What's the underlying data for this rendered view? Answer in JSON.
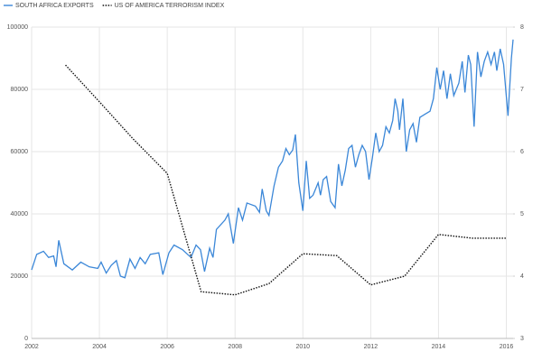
{
  "chart_data": {
    "type": "line",
    "xlim": [
      2002,
      2016.2
    ],
    "xticks": [
      2002,
      2004,
      2006,
      2008,
      2010,
      2012,
      2014,
      2016
    ],
    "ylim": [
      0,
      100000
    ],
    "yticks": [
      0,
      20000,
      40000,
      60000,
      80000,
      100000
    ],
    "y2lim": [
      3,
      8
    ],
    "y2ticks": [
      3,
      4,
      5,
      6,
      7,
      8
    ],
    "grid": true,
    "legend": "top-left",
    "series": [
      {
        "name": "SOUTH AFRICA EXPORTS",
        "color": "#3b87d8",
        "axis": "y",
        "style": "solid",
        "x": [
          2002.0,
          2002.15,
          2002.35,
          2002.5,
          2002.65,
          2002.72,
          2002.8,
          2002.95,
          2003.2,
          2003.45,
          2003.7,
          2003.95,
          2004.05,
          2004.2,
          2004.35,
          2004.5,
          2004.62,
          2004.75,
          2004.9,
          2005.05,
          2005.2,
          2005.35,
          2005.5,
          2005.75,
          2005.87,
          2006.05,
          2006.2,
          2006.45,
          2006.7,
          2006.85,
          2006.98,
          2007.1,
          2007.25,
          2007.35,
          2007.45,
          2007.7,
          2007.8,
          2007.95,
          2008.1,
          2008.22,
          2008.35,
          2008.6,
          2008.72,
          2008.8,
          2008.92,
          2009.0,
          2009.15,
          2009.28,
          2009.4,
          2009.5,
          2009.6,
          2009.7,
          2009.78,
          2009.88,
          2010.0,
          2010.1,
          2010.2,
          2010.3,
          2010.45,
          2010.52,
          2010.6,
          2010.7,
          2010.82,
          2010.95,
          2011.05,
          2011.15,
          2011.25,
          2011.35,
          2011.45,
          2011.55,
          2011.65,
          2011.75,
          2011.85,
          2011.95,
          2012.05,
          2012.15,
          2012.25,
          2012.35,
          2012.45,
          2012.55,
          2012.65,
          2012.72,
          2012.8,
          2012.85,
          2012.95,
          2013.05,
          2013.15,
          2013.25,
          2013.35,
          2013.45,
          2013.6,
          2013.75,
          2013.85,
          2013.95,
          2014.05,
          2014.15,
          2014.25,
          2014.35,
          2014.45,
          2014.6,
          2014.7,
          2014.78,
          2014.88,
          2014.95,
          2015.05,
          2015.15,
          2015.25,
          2015.35,
          2015.45,
          2015.55,
          2015.65,
          2015.72,
          2015.82,
          2015.92,
          2016.05,
          2016.15,
          2016.2
        ],
        "values": [
          22000,
          27000,
          28000,
          26000,
          26500,
          23000,
          31500,
          24000,
          22000,
          24500,
          23000,
          22500,
          24500,
          21000,
          23500,
          25000,
          20000,
          19500,
          25500,
          22500,
          26000,
          24000,
          27000,
          27500,
          20500,
          27500,
          30000,
          28500,
          26000,
          30000,
          28500,
          21500,
          29000,
          26000,
          35000,
          38000,
          40000,
          30500,
          42000,
          38000,
          43500,
          42500,
          40500,
          48000,
          41000,
          39500,
          49000,
          55000,
          57000,
          61000,
          59000,
          60500,
          65500,
          50000,
          41000,
          57000,
          45000,
          46000,
          50000,
          46000,
          51000,
          52000,
          44000,
          42000,
          56000,
          49000,
          54000,
          61000,
          62000,
          55000,
          59000,
          62000,
          60000,
          51000,
          58000,
          66000,
          60000,
          62000,
          68000,
          66000,
          70000,
          77000,
          73000,
          67000,
          77000,
          60000,
          67000,
          69000,
          63000,
          71000,
          72000,
          73000,
          77000,
          87000,
          80000,
          86000,
          77000,
          85000,
          78000,
          82000,
          89000,
          79000,
          91000,
          88000,
          68000,
          92000,
          84000,
          89000,
          92000,
          88000,
          92000,
          86000,
          93000,
          88000,
          71500,
          90000,
          96000
        ]
      },
      {
        "name": "US OF AMERICA TERRORISM INDEX",
        "color": "#111111",
        "axis": "y2",
        "style": "dotted",
        "x": [
          2003,
          2004,
          2005,
          2006,
          2007,
          2008,
          2009,
          2010,
          2011,
          2012,
          2013,
          2014,
          2015,
          2016
        ],
        "values": [
          7.39,
          6.8,
          6.2,
          5.65,
          3.75,
          3.7,
          3.88,
          4.36,
          4.33,
          3.86,
          4.0,
          4.67,
          4.61,
          4.61
        ]
      }
    ]
  }
}
